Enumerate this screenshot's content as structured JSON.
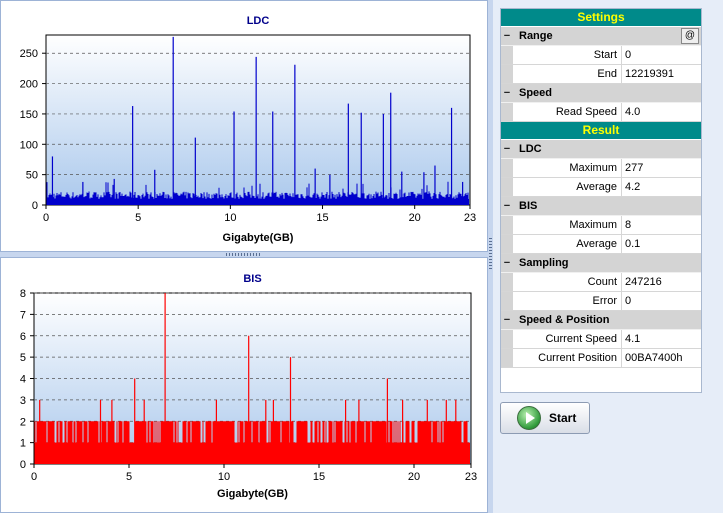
{
  "charts": {
    "ldc": {
      "title": "LDC",
      "xlabel": "Gigabyte(GB)"
    },
    "bis": {
      "title": "BIS",
      "xlabel": "Gigabyte(GB)"
    }
  },
  "chart_data": [
    {
      "type": "bar",
      "title": "LDC",
      "xlabel": "Gigabyte(GB)",
      "ylabel": "",
      "xlim": [
        0,
        23
      ],
      "ylim": [
        0,
        280
      ],
      "xticks": [
        0,
        5,
        10,
        15,
        20,
        23
      ],
      "yticks": [
        0,
        50,
        100,
        150,
        200,
        250
      ],
      "grid": true,
      "color": "#0000cc",
      "baseline_level": 10,
      "spikes": [
        {
          "x": 0.35,
          "y": 80
        },
        {
          "x": 2.0,
          "y": 38
        },
        {
          "x": 3.7,
          "y": 43
        },
        {
          "x": 4.7,
          "y": 163
        },
        {
          "x": 5.9,
          "y": 58
        },
        {
          "x": 6.9,
          "y": 277
        },
        {
          "x": 8.1,
          "y": 111
        },
        {
          "x": 10.2,
          "y": 154
        },
        {
          "x": 11.4,
          "y": 244
        },
        {
          "x": 12.3,
          "y": 154
        },
        {
          "x": 13.5,
          "y": 231
        },
        {
          "x": 14.6,
          "y": 60
        },
        {
          "x": 15.4,
          "y": 50
        },
        {
          "x": 16.4,
          "y": 167
        },
        {
          "x": 17.1,
          "y": 152
        },
        {
          "x": 18.3,
          "y": 150
        },
        {
          "x": 18.7,
          "y": 185
        },
        {
          "x": 19.3,
          "y": 55
        },
        {
          "x": 20.5,
          "y": 54
        },
        {
          "x": 21.1,
          "y": 65
        },
        {
          "x": 22.0,
          "y": 160
        },
        {
          "x": 22.6,
          "y": 38
        }
      ]
    },
    {
      "type": "bar",
      "title": "BIS",
      "xlabel": "Gigabyte(GB)",
      "ylabel": "",
      "xlim": [
        0,
        23
      ],
      "ylim": [
        0,
        8
      ],
      "xticks": [
        0,
        5,
        10,
        15,
        20,
        23
      ],
      "yticks": [
        0,
        1,
        2,
        3,
        4,
        5,
        6,
        7,
        8
      ],
      "grid": true,
      "color": "#ff0000",
      "baseline_level": 1,
      "band_level": 2,
      "spikes": [
        {
          "x": 0.3,
          "y": 3
        },
        {
          "x": 3.5,
          "y": 3
        },
        {
          "x": 4.1,
          "y": 3
        },
        {
          "x": 5.3,
          "y": 4
        },
        {
          "x": 5.8,
          "y": 3
        },
        {
          "x": 6.9,
          "y": 8
        },
        {
          "x": 9.6,
          "y": 3
        },
        {
          "x": 11.3,
          "y": 6
        },
        {
          "x": 12.2,
          "y": 3
        },
        {
          "x": 12.6,
          "y": 3
        },
        {
          "x": 13.5,
          "y": 5
        },
        {
          "x": 16.4,
          "y": 3
        },
        {
          "x": 17.1,
          "y": 3
        },
        {
          "x": 18.6,
          "y": 4
        },
        {
          "x": 19.4,
          "y": 3
        },
        {
          "x": 20.7,
          "y": 3
        },
        {
          "x": 21.7,
          "y": 3
        },
        {
          "x": 22.2,
          "y": 3
        }
      ]
    }
  ],
  "side": {
    "settings_title": "Settings",
    "result_title": "Result",
    "range": {
      "label": "Range",
      "at_button": "@",
      "start_label": "Start",
      "start_value": "0",
      "end_label": "End",
      "end_value": "12219391"
    },
    "speed": {
      "label": "Speed",
      "read_label": "Read Speed",
      "read_value": "4.0"
    },
    "ldc": {
      "label": "LDC",
      "max_label": "Maximum",
      "max_value": "277",
      "avg_label": "Average",
      "avg_value": "4.2"
    },
    "bis": {
      "label": "BIS",
      "max_label": "Maximum",
      "max_value": "8",
      "avg_label": "Average",
      "avg_value": "0.1"
    },
    "sampling": {
      "label": "Sampling",
      "count_label": "Count",
      "count_value": "247216",
      "error_label": "Error",
      "error_value": "0"
    },
    "speed_position": {
      "label": "Speed & Position",
      "cur_speed_label": "Current Speed",
      "cur_speed_value": "4.1",
      "cur_pos_label": "Current Position",
      "cur_pos_value": "00BA7400h"
    },
    "collapse_glyph": "−",
    "start_button": "Start"
  },
  "colors": {
    "title": "#00008b",
    "ldc": "#0000cc",
    "bis": "#ff0000",
    "header_bg": "#008a8a",
    "header_fg": "#ffff00"
  }
}
